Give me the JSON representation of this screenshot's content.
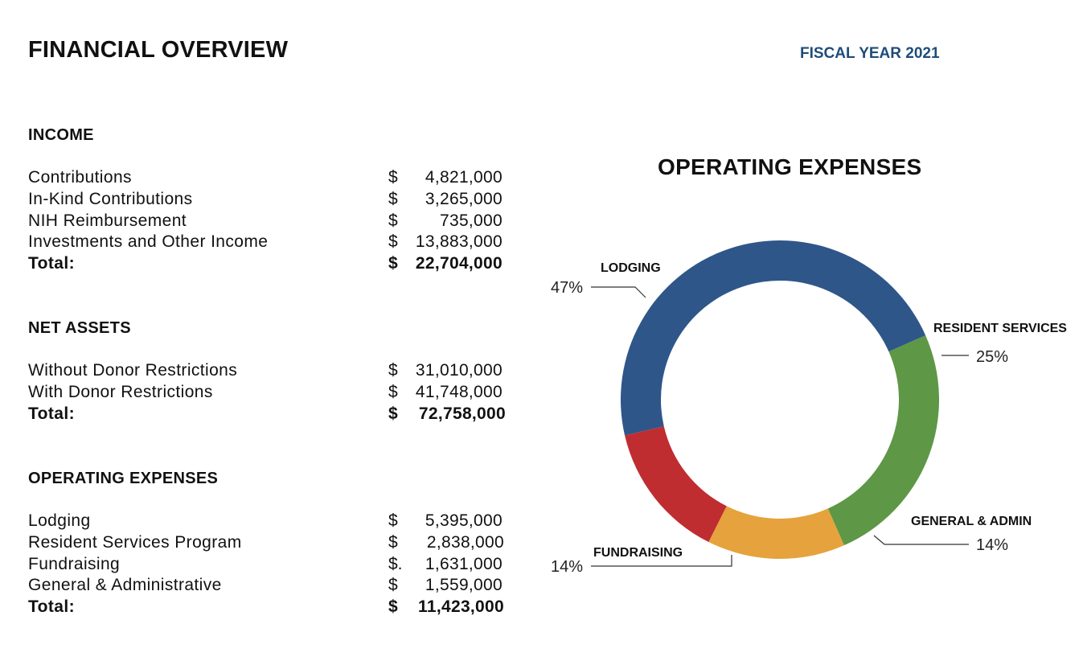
{
  "header": {
    "title": "FINANCIAL OVERVIEW",
    "fiscal_year": "FISCAL YEAR 2021"
  },
  "income": {
    "heading": "INCOME",
    "rows": [
      {
        "label": "Contributions",
        "currency": "$",
        "amount": "4,821,000"
      },
      {
        "label": "In-Kind Contributions",
        "currency": "$",
        "amount": "3,265,000"
      },
      {
        "label": "NIH Reimbursement",
        "currency": "$",
        "amount": "735,000"
      },
      {
        "label": "Investments and Other Income",
        "currency": "$",
        "amount": "13,883,000"
      }
    ],
    "total": {
      "label": "Total:",
      "currency": "$",
      "amount": "22,704,000"
    }
  },
  "net_assets": {
    "heading": "NET ASSETS",
    "rows": [
      {
        "label": "Without Donor Restrictions",
        "currency": "$",
        "amount": "31,010,000"
      },
      {
        "label": "With Donor Restrictions",
        "currency": "$",
        "amount": "41,748,000"
      }
    ],
    "total": {
      "label": "Total:",
      "currency": "$",
      "amount": "72,758,000"
    }
  },
  "operating_expenses": {
    "heading": "OPERATING EXPENSES",
    "rows": [
      {
        "label": "Lodging",
        "currency": "$",
        "amount": "5,395,000"
      },
      {
        "label": "Resident Services Program",
        "currency": "$",
        "amount": "2,838,000"
      },
      {
        "label": "Fundraising",
        "currency": "$.",
        "amount": "1,631,000"
      },
      {
        "label": "General & Administrative",
        "currency": "$",
        "amount": "1,559,000"
      }
    ],
    "total": {
      "label": "Total:",
      "currency": "$",
      "amount": "11,423,000"
    }
  },
  "chart_data": {
    "type": "pie",
    "title": "OPERATING EXPENSES",
    "categories": [
      "LODGING",
      "RESIDENT SERVICES",
      "GENERAL & ADMIN",
      "FUNDRAISING"
    ],
    "values": [
      47,
      25,
      14,
      14
    ],
    "value_labels": [
      "47%",
      "25%",
      "14%",
      "14%"
    ],
    "colors": [
      "#2e5689",
      "#5e9746",
      "#e6a23c",
      "#bf2d31"
    ],
    "hole": true
  }
}
